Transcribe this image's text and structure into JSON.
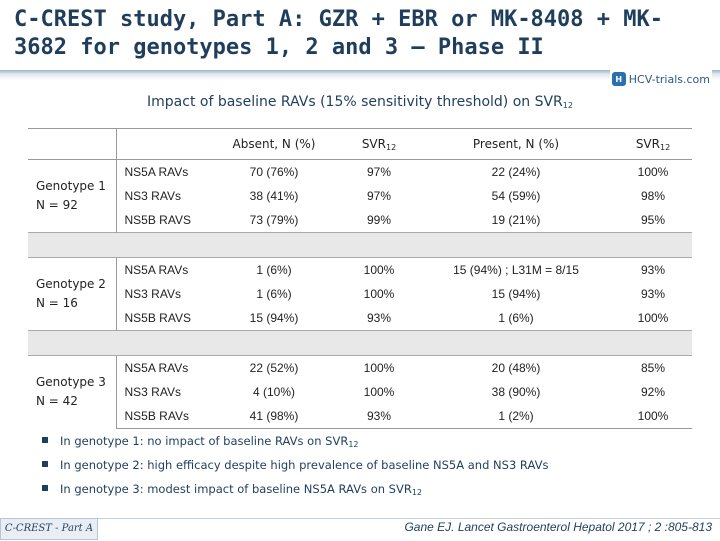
{
  "title": "C-CREST study, Part A: GZR + EBR or MK-8408 + MK-3682 for genotypes 1, 2 and 3 – Phase II",
  "logo": {
    "text": "HCV-trials.com",
    "icon": "hcv-trials-logo-icon"
  },
  "subtitle": {
    "text": "Impact of baseline RAVs (15% sensitivity threshold) on SVR",
    "sub": "12"
  },
  "table": {
    "headers": {
      "absent": "Absent, N (%)",
      "svr_a": "SVR",
      "svr_a_sub": "12",
      "present": "Present, N (%)",
      "svr_p": "SVR",
      "svr_p_sub": "12"
    },
    "groups": [
      {
        "genotype": "Genotype 1",
        "n": "N = 92",
        "rows": [
          {
            "rav": "NS5A RAVs",
            "absent": "70 (76%)",
            "svr_a": "97%",
            "present": "22 (24%)",
            "svr_p": "100%"
          },
          {
            "rav": "NS3 RAVs",
            "absent": "38 (41%)",
            "svr_a": "97%",
            "present": "54 (59%)",
            "svr_p": "98%"
          },
          {
            "rav": "NS5B RAVS",
            "absent": "73 (79%)",
            "svr_a": "99%",
            "present": "19 (21%)",
            "svr_p": "95%"
          }
        ]
      },
      {
        "genotype": "Genotype 2",
        "n": "N = 16",
        "rows": [
          {
            "rav": "NS5A RAVs",
            "absent": "1 (6%)",
            "svr_a": "100%",
            "present": "15 (94%) ; L31M = 8/15",
            "svr_p": "93%"
          },
          {
            "rav": "NS3 RAVs",
            "absent": "1 (6%)",
            "svr_a": "100%",
            "present": "15 (94%)",
            "svr_p": "93%"
          },
          {
            "rav": "NS5B RAVS",
            "absent": "15 (94%)",
            "svr_a": "93%",
            "present": "1 (6%)",
            "svr_p": "100%"
          }
        ]
      },
      {
        "genotype": "Genotype 3",
        "n": "N = 42",
        "rows": [
          {
            "rav": "NS5A RAVs",
            "absent": "22 (52%)",
            "svr_a": "100%",
            "present": "20 (48%)",
            "svr_p": "85%"
          },
          {
            "rav": "NS3 RAVs",
            "absent": "4 (10%)",
            "svr_a": "100%",
            "present": "38 (90%)",
            "svr_p": "92%"
          },
          {
            "rav": "NS5B RAVs",
            "absent": "41 (98%)",
            "svr_a": "93%",
            "present": "1 (2%)",
            "svr_p": "100%"
          }
        ]
      }
    ]
  },
  "bullets": [
    {
      "text": "In genotype 1: no impact of baseline RAVs on SVR",
      "sub": "12"
    },
    {
      "text": "In genotype 2: high efficacy despite high prevalence of baseline NS5A and NS3 RAVs",
      "sub": ""
    },
    {
      "text": "In genotype 3: modest impact of baseline NS5A RAVs on SVR",
      "sub": "12"
    }
  ],
  "footer": {
    "tag": "C-CREST - Part A",
    "citation": "Gane EJ. Lancet Gastroenterol Hepatol 2017 ; 2 :805-813"
  }
}
